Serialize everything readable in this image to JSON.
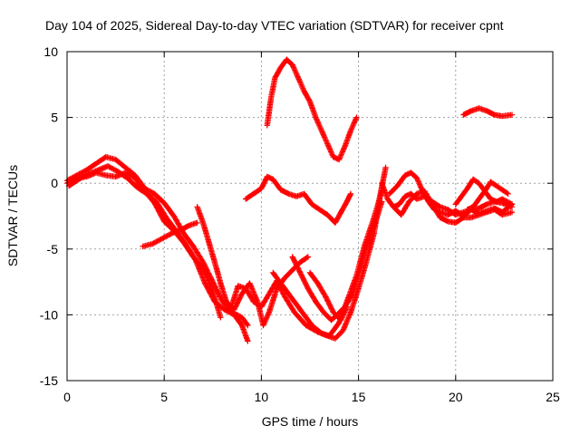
{
  "chart_data": {
    "type": "scatter",
    "title": "Day 104 of 2025, Sidereal Day-to-day VTEC variation (SDTVAR) for receiver cpnt",
    "xlabel": "GPS time / hours",
    "ylabel": "SDTVAR / TECUs",
    "xlim": [
      0,
      25
    ],
    "ylim": [
      -15,
      10
    ],
    "x_ticks": [
      0,
      5,
      10,
      15,
      20,
      25
    ],
    "y_ticks": [
      -15,
      -10,
      -5,
      0,
      5,
      10
    ],
    "grid": true,
    "marker": "+",
    "color": "#ff0000",
    "series": [
      {
        "points": [
          [
            0.0,
            0.2
          ],
          [
            0.5,
            0.6
          ],
          [
            1.0,
            1.0
          ],
          [
            1.5,
            1.5
          ],
          [
            2.0,
            2.0
          ],
          [
            2.5,
            1.8
          ],
          [
            3.0,
            1.2
          ],
          [
            3.5,
            0.6
          ],
          [
            4.0,
            -0.4
          ],
          [
            4.5,
            -0.8
          ],
          [
            5.0,
            -1.5
          ],
          [
            5.5,
            -2.5
          ],
          [
            6.0,
            -3.8
          ],
          [
            6.5,
            -4.8
          ],
          [
            7.0,
            -6.0
          ],
          [
            7.5,
            -7.5
          ],
          [
            8.0,
            -9.0
          ],
          [
            8.5,
            -9.8
          ],
          [
            9.0,
            -10.2
          ],
          [
            9.3,
            -10.8
          ]
        ]
      },
      {
        "points": [
          [
            0.1,
            -0.2
          ],
          [
            0.6,
            0.3
          ],
          [
            1.1,
            0.7
          ],
          [
            1.6,
            1.0
          ],
          [
            2.1,
            1.3
          ],
          [
            2.6,
            0.9
          ],
          [
            3.1,
            0.4
          ],
          [
            3.6,
            -0.3
          ],
          [
            4.1,
            -0.8
          ],
          [
            4.6,
            -1.4
          ],
          [
            5.1,
            -2.6
          ],
          [
            5.6,
            -3.6
          ],
          [
            6.1,
            -4.6
          ],
          [
            6.6,
            -5.8
          ],
          [
            7.1,
            -7.6
          ],
          [
            7.6,
            -9.0
          ],
          [
            8.1,
            -9.6
          ],
          [
            8.6,
            -10.0
          ],
          [
            9.0,
            -10.8
          ],
          [
            9.3,
            -12.0
          ]
        ]
      },
      {
        "points": [
          [
            0.0,
            0.0
          ],
          [
            0.5,
            0.4
          ],
          [
            1.0,
            0.5
          ],
          [
            1.5,
            0.8
          ],
          [
            2.0,
            0.6
          ],
          [
            2.5,
            0.5
          ],
          [
            3.0,
            0.8
          ],
          [
            3.5,
            0.4
          ],
          [
            4.0,
            -0.6
          ],
          [
            4.5,
            -1.5
          ],
          [
            5.0,
            -2.9
          ],
          [
            5.5,
            -3.6
          ],
          [
            6.0,
            -4.5
          ],
          [
            6.5,
            -5.6
          ],
          [
            7.0,
            -6.5
          ],
          [
            7.5,
            -8.2
          ],
          [
            7.9,
            -10.2
          ]
        ]
      },
      {
        "points": [
          [
            3.9,
            -4.8
          ],
          [
            4.4,
            -4.6
          ],
          [
            4.9,
            -4.2
          ],
          [
            5.4,
            -3.8
          ],
          [
            5.9,
            -3.5
          ],
          [
            6.3,
            -3.2
          ],
          [
            6.7,
            -3.0
          ]
        ]
      },
      {
        "points": [
          [
            6.7,
            -1.8
          ],
          [
            7.0,
            -3.0
          ],
          [
            7.3,
            -4.5
          ],
          [
            7.6,
            -6.0
          ],
          [
            7.9,
            -7.6
          ],
          [
            8.2,
            -9.0
          ],
          [
            8.6,
            -9.6
          ],
          [
            9.0,
            -8.4
          ],
          [
            9.4,
            -7.6
          ],
          [
            9.8,
            -9.0
          ],
          [
            10.1,
            -10.8
          ],
          [
            10.4,
            -9.8
          ],
          [
            10.8,
            -8.0
          ],
          [
            11.2,
            -7.2
          ],
          [
            11.6,
            -6.6
          ],
          [
            12.0,
            -6.0
          ],
          [
            12.4,
            -5.6
          ]
        ]
      },
      {
        "points": [
          [
            8.5,
            -9.2
          ],
          [
            8.8,
            -7.8
          ],
          [
            9.2,
            -8.0
          ],
          [
            9.6,
            -9.0
          ],
          [
            10.0,
            -9.4
          ],
          [
            10.4,
            -8.4
          ],
          [
            10.8,
            -7.4
          ],
          [
            11.2,
            -8.6
          ],
          [
            11.7,
            -9.8
          ],
          [
            12.3,
            -10.8
          ],
          [
            12.9,
            -11.3
          ],
          [
            13.4,
            -11.6
          ],
          [
            13.8,
            -11.8
          ],
          [
            14.2,
            -11.2
          ],
          [
            14.6,
            -9.8
          ],
          [
            15.0,
            -8.0
          ],
          [
            15.4,
            -6.0
          ],
          [
            15.8,
            -3.8
          ],
          [
            16.1,
            -1.0
          ],
          [
            16.4,
            1.2
          ]
        ]
      },
      {
        "points": [
          [
            10.6,
            -6.8
          ],
          [
            11.1,
            -7.8
          ],
          [
            11.6,
            -8.8
          ],
          [
            12.1,
            -9.8
          ],
          [
            12.6,
            -10.8
          ],
          [
            13.1,
            -11.4
          ],
          [
            13.5,
            -11.6
          ],
          [
            14.0,
            -10.6
          ],
          [
            14.4,
            -9.0
          ],
          [
            14.9,
            -7.0
          ],
          [
            15.3,
            -4.8
          ],
          [
            15.8,
            -2.6
          ],
          [
            16.2,
            -0.6
          ]
        ]
      },
      {
        "points": [
          [
            11.6,
            -5.6
          ],
          [
            12.0,
            -6.8
          ],
          [
            12.4,
            -8.0
          ],
          [
            12.8,
            -9.0
          ],
          [
            13.2,
            -9.8
          ],
          [
            13.6,
            -10.4
          ],
          [
            13.9,
            -10.0
          ],
          [
            14.3,
            -9.4
          ],
          [
            14.7,
            -8.4
          ],
          [
            15.1,
            -6.4
          ],
          [
            15.5,
            -4.4
          ],
          [
            15.9,
            -2.8
          ],
          [
            16.2,
            -1.4
          ]
        ]
      },
      {
        "points": [
          [
            12.5,
            -6.8
          ],
          [
            12.9,
            -7.6
          ],
          [
            13.3,
            -8.6
          ],
          [
            13.7,
            -9.8
          ],
          [
            14.1,
            -10.4
          ],
          [
            14.4,
            -9.4
          ]
        ]
      },
      {
        "points": [
          [
            9.2,
            -1.2
          ],
          [
            9.6,
            -0.8
          ],
          [
            10.0,
            -0.4
          ],
          [
            10.3,
            0.5
          ],
          [
            10.6,
            0.3
          ],
          [
            11.0,
            -0.5
          ],
          [
            11.4,
            -0.8
          ],
          [
            11.8,
            -1.0
          ],
          [
            12.2,
            -0.8
          ],
          [
            12.6,
            -1.6
          ],
          [
            13.0,
            -2.0
          ],
          [
            13.4,
            -2.4
          ],
          [
            13.8,
            -3.0
          ],
          [
            14.1,
            -2.2
          ],
          [
            14.4,
            -1.4
          ],
          [
            14.6,
            -0.8
          ]
        ]
      },
      {
        "points": [
          [
            10.3,
            4.4
          ],
          [
            10.5,
            6.5
          ],
          [
            10.7,
            8.0
          ],
          [
            11.0,
            8.8
          ],
          [
            11.3,
            9.4
          ],
          [
            11.6,
            9.0
          ],
          [
            11.9,
            8.0
          ],
          [
            12.2,
            7.0
          ],
          [
            12.5,
            6.2
          ],
          [
            12.8,
            5.0
          ],
          [
            13.1,
            4.0
          ],
          [
            13.4,
            3.0
          ],
          [
            13.7,
            2.0
          ],
          [
            14.0,
            1.8
          ],
          [
            14.3,
            2.8
          ],
          [
            14.6,
            4.0
          ],
          [
            14.9,
            5.0
          ]
        ]
      },
      {
        "points": [
          [
            16.2,
            0.0
          ],
          [
            16.5,
            -1.2
          ],
          [
            16.8,
            -1.8
          ],
          [
            17.1,
            -1.6
          ],
          [
            17.4,
            -1.0
          ],
          [
            17.7,
            -0.8
          ],
          [
            18.0,
            -1.2
          ],
          [
            18.4,
            -1.0
          ],
          [
            18.8,
            -1.4
          ],
          [
            19.2,
            -1.8
          ],
          [
            19.6,
            -2.0
          ],
          [
            20.0,
            -2.4
          ],
          [
            20.4,
            -2.2
          ],
          [
            20.8,
            -2.0
          ],
          [
            21.2,
            -1.9
          ],
          [
            21.6,
            -1.6
          ],
          [
            22.0,
            -1.4
          ],
          [
            22.4,
            -1.5
          ],
          [
            22.9,
            -1.8
          ]
        ]
      },
      {
        "points": [
          [
            16.6,
            -0.8
          ],
          [
            17.0,
            -0.2
          ],
          [
            17.4,
            0.6
          ],
          [
            17.7,
            0.8
          ],
          [
            18.0,
            0.4
          ],
          [
            18.3,
            -0.6
          ],
          [
            18.6,
            -1.4
          ],
          [
            18.9,
            -2.0
          ],
          [
            19.2,
            -2.2
          ],
          [
            19.6,
            -2.4
          ],
          [
            20.0,
            -2.1
          ],
          [
            20.4,
            -2.5
          ],
          [
            20.8,
            -2.0
          ],
          [
            21.2,
            -2.3
          ],
          [
            21.6,
            -2.1
          ],
          [
            22.0,
            -1.9
          ],
          [
            22.4,
            -2.2
          ],
          [
            22.9,
            -1.6
          ]
        ]
      },
      {
        "points": [
          [
            16.8,
            -1.8
          ],
          [
            17.2,
            -2.4
          ],
          [
            17.6,
            -1.4
          ],
          [
            18.0,
            -0.8
          ],
          [
            18.4,
            -0.6
          ],
          [
            18.8,
            -1.6
          ],
          [
            19.2,
            -2.6
          ],
          [
            19.6,
            -2.9
          ],
          [
            20.0,
            -3.0
          ],
          [
            20.4,
            -2.6
          ],
          [
            20.8,
            -2.6
          ],
          [
            21.2,
            -2.4
          ],
          [
            21.6,
            -2.2
          ],
          [
            22.0,
            -2.0
          ],
          [
            22.4,
            -2.4
          ],
          [
            22.9,
            -2.2
          ]
        ]
      },
      {
        "points": [
          [
            20.0,
            -1.6
          ],
          [
            20.3,
            -1.0
          ],
          [
            20.6,
            -0.4
          ],
          [
            20.9,
            0.3
          ],
          [
            21.2,
            0.0
          ],
          [
            21.5,
            -0.6
          ],
          [
            21.8,
            -1.2
          ],
          [
            22.1,
            -1.4
          ],
          [
            22.4,
            -1.2
          ],
          [
            22.9,
            -1.6
          ]
        ]
      },
      {
        "points": [
          [
            20.6,
            -2.0
          ],
          [
            20.9,
            -1.8
          ],
          [
            21.2,
            -1.2
          ],
          [
            21.5,
            -0.6
          ],
          [
            21.8,
            0.1
          ],
          [
            22.1,
            -0.2
          ],
          [
            22.4,
            -0.5
          ],
          [
            22.7,
            -0.8
          ]
        ]
      },
      {
        "points": [
          [
            20.4,
            5.2
          ],
          [
            20.8,
            5.5
          ],
          [
            21.2,
            5.7
          ],
          [
            21.6,
            5.5
          ],
          [
            22.0,
            5.2
          ],
          [
            22.4,
            5.1
          ],
          [
            22.9,
            5.2
          ]
        ]
      }
    ]
  }
}
